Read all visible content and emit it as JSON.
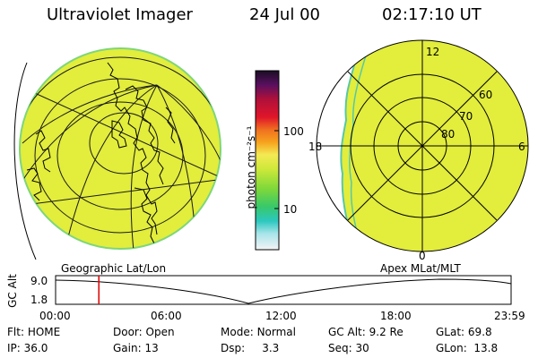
{
  "header": {
    "instrument": "Ultraviolet Imager",
    "date": "24 Jul 00",
    "time": "02:17:10 UT"
  },
  "colorbar": {
    "label": "photon cm⁻²s⁻¹",
    "ticks": [
      "100",
      "10"
    ]
  },
  "polar_plot": {
    "mlt_labels": [
      "12",
      "18",
      "6",
      "0"
    ],
    "lat_labels": [
      "60",
      "70",
      "80"
    ]
  },
  "panel_labels": {
    "left": "Geographic Lat/Lon",
    "right": "Apex MLat/MLT"
  },
  "altitude_strip": {
    "axis_label": "GC Alt",
    "y_ticks": [
      "9.0",
      "1.8"
    ],
    "time_ticks": [
      "00:00",
      "06:00",
      "12:00",
      "18:00",
      "23:59"
    ],
    "marker_fraction": 0.095,
    "marker_color": "#dd0000"
  },
  "footer": {
    "row1": [
      {
        "label": "Flt:",
        "value": "HOME"
      },
      {
        "label": "Door:",
        "value": "Open"
      },
      {
        "label": "Mode:",
        "value": "Normal"
      },
      {
        "label": "GC Alt:",
        "value": "9.2 Re"
      },
      {
        "label": "GLat:",
        "value": "69.8"
      }
    ],
    "row2": [
      {
        "label": "IP:",
        "value": "36.0"
      },
      {
        "label": "Gain:",
        "value": "13"
      },
      {
        "label": "Dsp:",
        "value": "3.3"
      },
      {
        "label": "Seq:",
        "value": "30"
      },
      {
        "label": "GLon:",
        "value": "13.8"
      }
    ]
  },
  "colors": {
    "image_fill": "#e2ed3c",
    "image_edge": "#7ed67a",
    "polar_rim": "#58c8a6"
  }
}
